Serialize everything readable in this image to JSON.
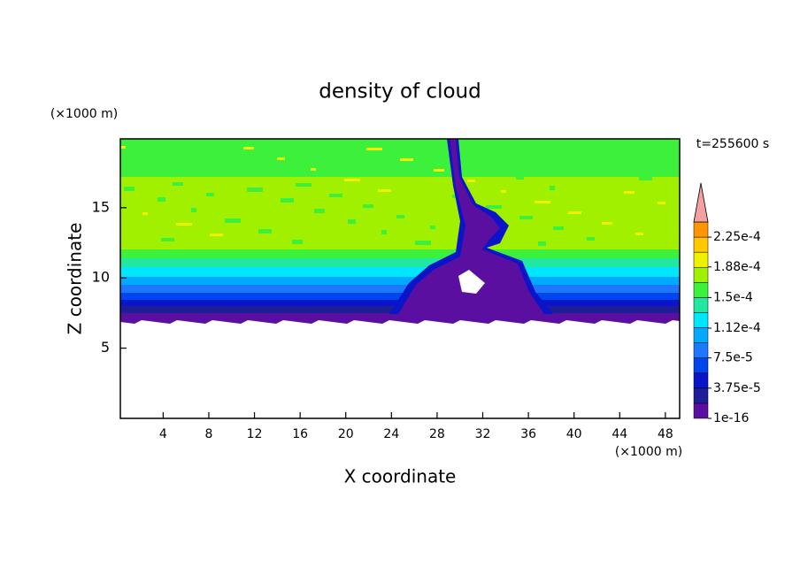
{
  "chart_data": {
    "type": "contour",
    "title": "density of cloud",
    "annotation": "t=255600 s",
    "x_label": "X coordinate",
    "y_label": "Z coordinate",
    "x_unit": "(×1000 m)",
    "y_unit": "(×1000 m)",
    "xlim": [
      0.25,
      49.25
    ],
    "xticks": [
      4,
      8,
      12,
      16,
      20,
      24,
      28,
      32,
      36,
      40,
      44,
      48
    ],
    "ylim": [
      0,
      19.9
    ],
    "yticks": [
      5,
      10,
      15
    ],
    "colorbar": {
      "lim": [
        0,
        0.00024375
      ],
      "levels": [
        {
          "value": 1e-16,
          "label": "1e-16"
        },
        {
          "value": 3.75e-05,
          "label": "3.75e-5"
        },
        {
          "value": 7.5e-05,
          "label": "7.5e-5"
        },
        {
          "value": 0.000112,
          "label": "1.12e-4"
        },
        {
          "value": 0.00015,
          "label": "1.5e-4"
        },
        {
          "value": 0.000188,
          "label": "1.88e-4"
        },
        {
          "value": 0.000225,
          "label": "2.25e-4"
        }
      ],
      "colors": [
        "#5a0fa0",
        "#1e1e96",
        "#0a14c8",
        "#0046f0",
        "#1e78ff",
        "#00aaff",
        "#00e6ff",
        "#20e8a0",
        "#3cf03c",
        "#a0f000",
        "#f0f000",
        "#ffc800",
        "#ff9600",
        "#ff3c14"
      ],
      "extend_color": "#f5a0a0"
    }
  }
}
